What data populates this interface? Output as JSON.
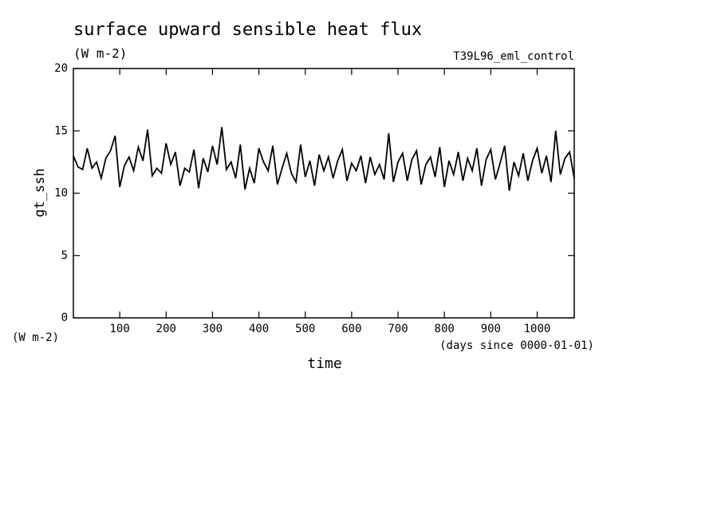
{
  "chart_data": {
    "type": "line",
    "title": "surface upward sensible heat flux",
    "subtitle": "(W m-2)",
    "annotation": "T39L96_eml_control",
    "ylabel": "gt_ssh",
    "yunits": "(W m-2)",
    "xlabel": "time",
    "xunits": "(days since 0000-01-01)",
    "xlim": [
      0,
      1080
    ],
    "ylim": [
      0,
      20
    ],
    "xticks": [
      100,
      200,
      300,
      400,
      500,
      600,
      700,
      800,
      900,
      1000
    ],
    "yticks": [
      0,
      5,
      10,
      15,
      20
    ],
    "x": [
      0,
      10,
      20,
      30,
      40,
      50,
      60,
      70,
      80,
      90,
      100,
      110,
      120,
      130,
      140,
      150,
      160,
      170,
      180,
      190,
      200,
      210,
      220,
      230,
      240,
      250,
      260,
      270,
      280,
      290,
      300,
      310,
      320,
      330,
      340,
      350,
      360,
      370,
      380,
      390,
      400,
      410,
      420,
      430,
      440,
      450,
      460,
      470,
      480,
      490,
      500,
      510,
      520,
      530,
      540,
      550,
      560,
      570,
      580,
      590,
      600,
      610,
      620,
      630,
      640,
      650,
      660,
      670,
      680,
      690,
      700,
      710,
      720,
      730,
      740,
      750,
      760,
      770,
      780,
      790,
      800,
      810,
      820,
      830,
      840,
      850,
      860,
      870,
      880,
      890,
      900,
      910,
      920,
      930,
      940,
      950,
      960,
      970,
      980,
      990,
      1000,
      1010,
      1020,
      1030,
      1040,
      1050,
      1060,
      1070,
      1080
    ],
    "series": [
      {
        "name": "gt_ssh",
        "color": "#000000",
        "values": [
          13.0,
          12.1,
          11.9,
          13.6,
          12.0,
          12.5,
          11.2,
          12.8,
          13.4,
          14.6,
          10.5,
          12.2,
          12.9,
          11.8,
          13.7,
          12.6,
          15.1,
          11.4,
          12.0,
          11.6,
          14.0,
          12.3,
          13.3,
          10.6,
          12.0,
          11.7,
          13.5,
          10.4,
          12.8,
          11.7,
          13.8,
          12.3,
          15.3,
          11.9,
          12.5,
          11.2,
          13.9,
          10.3,
          12.0,
          10.8,
          13.6,
          12.5,
          11.8,
          13.8,
          10.7,
          12.0,
          13.2,
          11.6,
          10.9,
          13.9,
          11.3,
          12.6,
          10.6,
          13.1,
          11.8,
          12.9,
          11.2,
          12.6,
          13.5,
          11.0,
          12.4,
          11.8,
          13.0,
          10.8,
          12.9,
          11.5,
          12.3,
          11.1,
          14.8,
          10.9,
          12.5,
          13.2,
          11.0,
          12.7,
          13.4,
          10.7,
          12.3,
          12.9,
          11.3,
          13.7,
          10.5,
          12.6,
          11.5,
          13.3,
          11.0,
          12.8,
          11.8,
          13.6,
          10.6,
          12.7,
          13.5,
          11.1,
          12.4,
          13.8,
          10.2,
          12.5,
          11.4,
          13.2,
          11.0,
          12.6,
          13.6,
          11.6,
          13.0,
          10.9,
          15.0,
          11.5,
          12.8,
          13.3,
          11.2
        ]
      }
    ]
  }
}
